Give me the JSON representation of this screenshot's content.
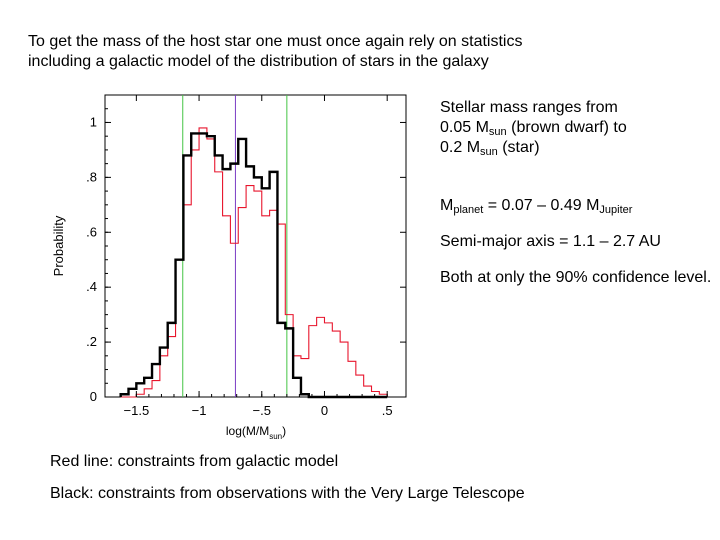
{
  "title": {
    "line1": "To get the mass of the host star one must once again rely on statistics",
    "line2": "including a galactic model of the distribution of stars in the galaxy"
  },
  "notes": {
    "stellar_line1": "Stellar mass ranges from",
    "stellar_line2_pre": "0.05 M",
    "stellar_line2_sub": "sun",
    "stellar_line2_post": " (brown dwarf) to",
    "stellar_line3_pre": "0.2 M",
    "stellar_line3_sub": "sun",
    "stellar_line3_post": " (star)",
    "planet_pre": "M",
    "planet_sub": "planet",
    "planet_mid": " = 0.07 – 0.49 M",
    "planet_sub2": "Jupiter",
    "axis": "Semi-major axis = 1.1 – 2.7 AU",
    "confidence": "Both at only the 90% confidence level."
  },
  "captions": {
    "red": "Red line: constraints from galactic model",
    "black": "Black: constraints from observations with the Very Large Telescope"
  },
  "colors": {
    "observed": "#000000",
    "model": "#e8152c",
    "bounds": "#44c444",
    "median": "#7a3cc4"
  },
  "chart_data": {
    "type": "step-histogram",
    "xlabel_main": "log(M/M",
    "xlabel_sub": "sun",
    "xlabel_close": ")",
    "ylabel": "Probability",
    "xlim": [
      -1.75,
      0.65
    ],
    "ylim": [
      0,
      1.1
    ],
    "xticks": [
      {
        "v": -1.5,
        "label": "−1.5"
      },
      {
        "v": -1,
        "label": "−1"
      },
      {
        "v": -0.5,
        "label": "−.5"
      },
      {
        "v": 0,
        "label": "0"
      },
      {
        "v": 0.5,
        "label": ".5"
      }
    ],
    "yticks": [
      {
        "v": 0,
        "label": "0"
      },
      {
        "v": 0.2,
        "label": ".2"
      },
      {
        "v": 0.4,
        "label": ".4"
      },
      {
        "v": 0.6,
        "label": ".6"
      },
      {
        "v": 0.8,
        "label": ".8"
      },
      {
        "v": 1,
        "label": "1"
      }
    ],
    "bin_edges": [
      -1.625,
      -1.5625,
      -1.5,
      -1.4375,
      -1.375,
      -1.3125,
      -1.25,
      -1.1875,
      -1.125,
      -1.0625,
      -1.0,
      -0.9375,
      -0.875,
      -0.8125,
      -0.75,
      -0.6875,
      -0.625,
      -0.5625,
      -0.5,
      -0.4375,
      -0.375,
      -0.3125,
      -0.25,
      -0.1875,
      -0.125,
      -0.0625,
      0.0,
      0.0625,
      0.125,
      0.1875,
      0.25,
      0.3125,
      0.375,
      0.4375,
      0.5
    ],
    "series": [
      {
        "name": "Black: observations with the Very Large Telescope",
        "color_key": "observed",
        "values": [
          0.01,
          0.03,
          0.05,
          0.07,
          0.12,
          0.18,
          0.27,
          0.5,
          0.88,
          0.96,
          0.96,
          0.95,
          0.88,
          0.83,
          0.85,
          0.94,
          0.84,
          0.8,
          0.76,
          0.82,
          0.27,
          0.25,
          0.07,
          0.01,
          0,
          0,
          0,
          0,
          0,
          0,
          0,
          0,
          0,
          0
        ]
      },
      {
        "name": "Red: galactic model",
        "color_key": "model",
        "values": [
          0,
          0,
          0.01,
          0.03,
          0.06,
          0.15,
          0.22,
          0.5,
          0.7,
          0.9,
          0.98,
          0.94,
          0.82,
          0.66,
          0.56,
          0.69,
          0.77,
          0.75,
          0.66,
          0.68,
          0.63,
          0.3,
          0.15,
          0.14,
          0.26,
          0.29,
          0.27,
          0.24,
          0.2,
          0.13,
          0.08,
          0.04,
          0.02,
          0.01
        ]
      }
    ],
    "vlines": [
      {
        "x": -1.13,
        "color_key": "bounds"
      },
      {
        "x": -0.71,
        "color_key": "median"
      },
      {
        "x": -0.3,
        "color_key": "bounds"
      }
    ]
  }
}
